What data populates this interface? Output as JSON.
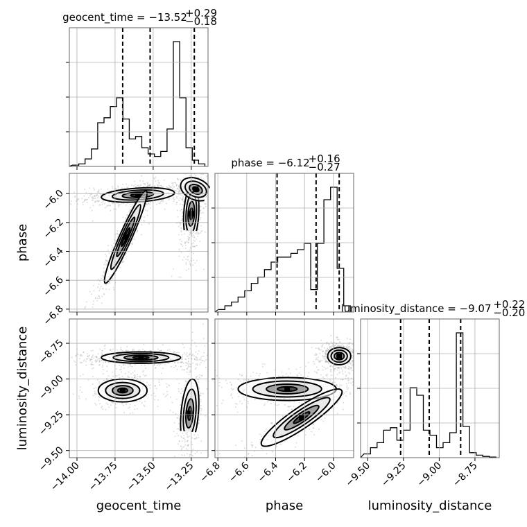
{
  "chart_data": {
    "type": "corner",
    "parameters": [
      {
        "key": "geocent_time",
        "label": "geocent_time",
        "range": [
          -14.05,
          -13.14
        ],
        "ticks": [
          -14.0,
          -13.75,
          -13.5,
          -13.25
        ],
        "tick_labels": [
          "−14.00",
          "−13.75",
          "−13.50",
          "−13.25"
        ],
        "quantiles": [
          -13.7,
          -13.52,
          -13.23
        ],
        "title": {
          "main": "geocent_time = −13.52",
          "sup": "+0.29",
          "sub": "−0.18"
        }
      },
      {
        "key": "phase",
        "label": "phase",
        "range": [
          -6.82,
          -5.86
        ],
        "ticks": [
          -6.8,
          -6.6,
          -6.4,
          -6.2,
          -6.0
        ],
        "tick_labels": [
          "−6.8",
          "−6.6",
          "−6.4",
          "−6.2",
          "−6.0"
        ],
        "quantiles": [
          -6.39,
          -6.12,
          -5.96
        ],
        "title": {
          "main": "phase = −6.12",
          "sup": "+0.16",
          "sub": "−0.27"
        }
      },
      {
        "key": "luminosity_distance",
        "label": "luminosity_distance",
        "range": [
          -9.55,
          -8.58
        ],
        "ticks": [
          -9.5,
          -9.25,
          -9.0,
          -8.75
        ],
        "tick_labels": [
          "−9.50",
          "−9.25",
          "−9.00",
          "−8.75"
        ],
        "quantiles": [
          -9.27,
          -9.07,
          -8.85
        ],
        "title": {
          "main": "luminosity_distance = −9.07",
          "sup": "+0.22",
          "sub": "−0.20"
        }
      }
    ],
    "histograms": {
      "geocent_time": [
        0.01,
        0.02,
        0.06,
        0.14,
        0.35,
        0.39,
        0.48,
        0.55,
        0.38,
        0.22,
        0.24,
        0.15,
        0.1,
        0.08,
        0.12,
        0.3,
        1.0,
        0.55,
        0.15,
        0.05,
        0.02
      ],
      "phase": [
        0.02,
        0.05,
        0.08,
        0.12,
        0.17,
        0.23,
        0.28,
        0.34,
        0.4,
        0.44,
        0.44,
        0.47,
        0.5,
        0.55,
        0.18,
        0.55,
        0.9,
        1.0,
        0.35,
        0.05
      ],
      "luminosity_distance": [
        0.03,
        0.08,
        0.12,
        0.22,
        0.24,
        0.14,
        0.22,
        0.56,
        0.5,
        0.22,
        0.18,
        0.08,
        0.12,
        0.2,
        1.0,
        0.25,
        0.04,
        0.02,
        0.01,
        0.005
      ]
    },
    "density_2d": [
      {
        "x": "geocent_time",
        "y": "phase",
        "components": [
          {
            "cx": -13.6,
            "cy": -6.01,
            "sx": 0.12,
            "sy": 0.025,
            "rho": 0.3,
            "w": 0.9
          },
          {
            "cx": -13.68,
            "cy": -6.3,
            "sx": 0.07,
            "sy": 0.16,
            "rho": 0.95,
            "w": 0.7
          },
          {
            "cx": -13.25,
            "cy": -6.14,
            "sx": 0.025,
            "sy": 0.1,
            "rho": 0.2,
            "w": 0.6
          },
          {
            "cx": -13.22,
            "cy": -5.97,
            "sx": 0.05,
            "sy": 0.04,
            "rho": -0.3,
            "w": 0.25
          }
        ]
      },
      {
        "x": "geocent_time",
        "y": "luminosity_distance",
        "components": [
          {
            "cx": -13.58,
            "cy": -8.85,
            "sx": 0.13,
            "sy": 0.02,
            "rho": 0.0,
            "w": 0.9
          },
          {
            "cx": -13.7,
            "cy": -9.08,
            "sx": 0.08,
            "sy": 0.04,
            "rho": 0.0,
            "w": 0.55
          },
          {
            "cx": -13.26,
            "cy": -9.24,
            "sx": 0.03,
            "sy": 0.12,
            "rho": 0.3,
            "w": 0.5
          }
        ]
      },
      {
        "x": "phase",
        "y": "luminosity_distance",
        "components": [
          {
            "cx": -5.96,
            "cy": -8.84,
            "sx": 0.04,
            "sy": 0.03,
            "rho": 0.0,
            "w": 0.9
          },
          {
            "cx": -6.32,
            "cy": -9.07,
            "sx": 0.17,
            "sy": 0.04,
            "rho": 0.0,
            "w": 0.55
          },
          {
            "cx": -6.22,
            "cy": -9.27,
            "sx": 0.14,
            "sy": 0.1,
            "rho": 0.9,
            "w": 0.4
          }
        ]
      }
    ],
    "grid": true,
    "line_color": "#000000",
    "sample_color": "#9e9e9e"
  }
}
